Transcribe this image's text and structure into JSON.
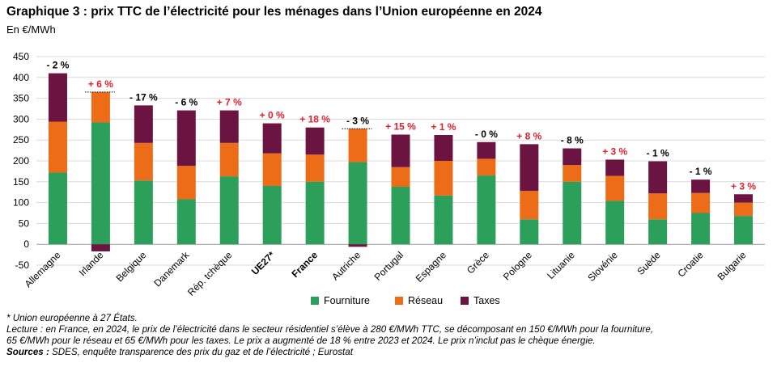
{
  "header": {
    "title": "Graphique 3 : prix TTC de l’électricité pour les ménages dans l’Union européenne en 2024",
    "unit": "En €/MWh"
  },
  "notes": {
    "footnote": "* Union européenne à 27 États.",
    "lecture_1": "Lecture : en France, en 2024, le prix de l’électricité dans le secteur résidentiel s’élève à 280 €/MWh TTC, se décomposant en 150 €/MWh pour la fourniture,",
    "lecture_2": "65 €/MWh pour le réseau et 65 €/MWh pour les taxes. Le prix a augmenté de 18 % entre 2023 et 2024. Le prix n’inclut pas le chèque énergie.",
    "sources_label": "Sources :",
    "sources_text": " SDES, enquête transparence des prix du gaz et de l’électricité ; Eurostat"
  },
  "chart_data": {
    "type": "bar",
    "stacked": true,
    "ylim": [
      -50,
      450
    ],
    "yticks": [
      -50,
      0,
      50,
      100,
      150,
      200,
      250,
      300,
      350,
      400,
      450
    ],
    "grid": true,
    "legend_position": "bottom",
    "categories": [
      "Allemagne",
      "Irlande",
      "Belgique",
      "Danemark",
      "Rép. tchèque",
      "UE27*",
      "France",
      "Autriche",
      "Portugal",
      "Espagne",
      "Grèce",
      "Pologne",
      "Lituanie",
      "Slovénie",
      "Suède",
      "Croatie",
      "Bulgarie"
    ],
    "bold_categories": [
      "UE27*",
      "France"
    ],
    "series": [
      {
        "name": "Fourniture",
        "color": "#2ca05a",
        "values": [
          172,
          292,
          153,
          108,
          163,
          140,
          150,
          197,
          138,
          117,
          165,
          60,
          150,
          104,
          60,
          75,
          68
        ]
      },
      {
        "name": "Réseau",
        "color": "#ec6c17",
        "values": [
          122,
          73,
          90,
          80,
          80,
          78,
          65,
          80,
          47,
          83,
          40,
          68,
          40,
          60,
          62,
          48,
          32
        ]
      },
      {
        "name": "Taxes",
        "color": "#6b1442",
        "values": [
          116,
          -17,
          90,
          133,
          78,
          72,
          65,
          -6,
          78,
          62,
          40,
          112,
          40,
          39,
          77,
          32,
          20
        ]
      }
    ],
    "change_labels": [
      "- 2 %",
      "+ 6 %",
      "- 17 %",
      "- 6 %",
      "+ 7 %",
      "+ 0 %",
      "+ 18 %",
      "- 3 %",
      "+ 15 %",
      "+ 1 %",
      "- 0 %",
      "+ 8 %",
      "- 8 %",
      "+ 3 %",
      "- 1 %",
      "- 1 %",
      "+ 3 %"
    ],
    "totals_net_of_negative_taxes": {
      "Irlande": 365,
      "Autriche": 277
    },
    "positive_color": "#e2202d",
    "negative_color": "#000000"
  }
}
